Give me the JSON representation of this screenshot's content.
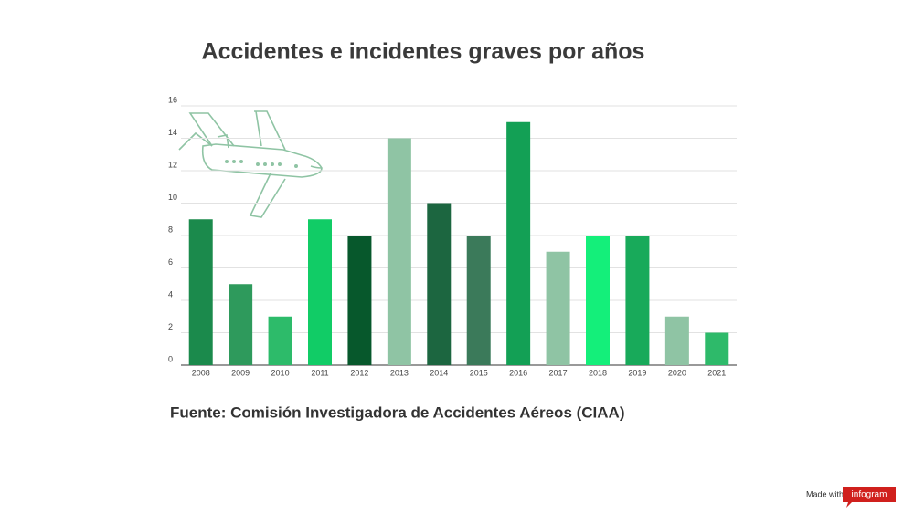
{
  "chart_data": {
    "type": "bar",
    "title": "Accidentes e incidentes graves por años",
    "categories": [
      "2008",
      "2009",
      "2010",
      "2011",
      "2012",
      "2013",
      "2014",
      "2015",
      "2016",
      "2017",
      "2018",
      "2019",
      "2020",
      "2021"
    ],
    "values": [
      9,
      5,
      3,
      9,
      8,
      14,
      10,
      8,
      15,
      7,
      8,
      8,
      3,
      2
    ],
    "colors": [
      "#1b8a4c",
      "#2e9a5c",
      "#2dbb6a",
      "#11cc66",
      "#07582c",
      "#8fc4a4",
      "#1c6640",
      "#3b7a5a",
      "#13a055",
      "#8fc4a4",
      "#14ef7a",
      "#18aa5a",
      "#8fc4a4",
      "#2eba6a"
    ],
    "ylim": [
      0,
      16
    ],
    "yticks": [
      0,
      2,
      4,
      6,
      8,
      10,
      12,
      14,
      16
    ],
    "grid": true,
    "source": "Fuente: Comisión Investigadora de Accidentes Aéreos (CIAA)"
  },
  "footer": {
    "made_with": "Made with",
    "brand": "infogram"
  }
}
